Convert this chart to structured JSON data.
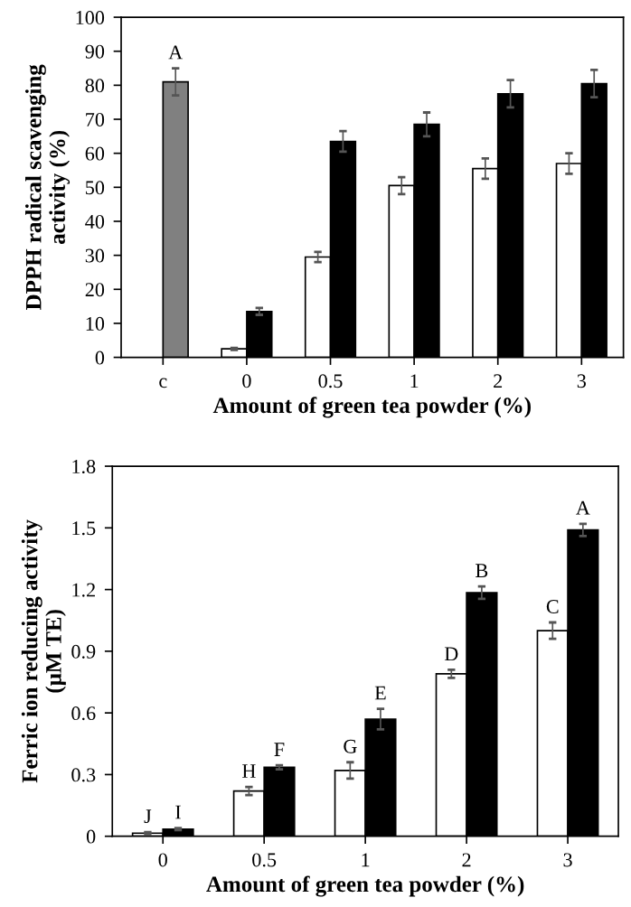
{
  "chart_data": [
    {
      "type": "bar",
      "ylabel": "DPPH radical scavenging\nactivity (%)",
      "xlabel": "Amount of green tea powder (%)",
      "categories": [
        "c",
        "0",
        "0.5",
        "1",
        "2",
        "3"
      ],
      "series": [
        {
          "color": "#ffffff",
          "values": [
            null,
            2.5,
            29.5,
            50.5,
            55.5,
            57
          ],
          "errors": [
            null,
            0.3,
            1.5,
            2.5,
            3,
            3
          ]
        },
        {
          "color": "#000000",
          "colors": [
            "#808080",
            "#000000",
            "#000000",
            "#000000",
            "#000000",
            "#000000"
          ],
          "values": [
            81,
            13.5,
            63.5,
            68.5,
            77.5,
            80.5
          ],
          "errors": [
            4,
            1,
            3,
            3.5,
            4,
            4
          ],
          "value_labels": [
            "A",
            null,
            null,
            null,
            null,
            null
          ]
        }
      ],
      "ylim": [
        0,
        100
      ],
      "yticks": [
        0,
        10,
        20,
        30,
        40,
        50,
        60,
        70,
        80,
        90,
        100
      ],
      "grid": false,
      "legend": false
    },
    {
      "type": "bar",
      "ylabel": "Ferric ion reducing activity\n(μM TE)",
      "xlabel": "Amount of green tea powder (%)",
      "categories": [
        "0",
        "0.5",
        "1",
        "2",
        "3"
      ],
      "series": [
        {
          "color": "#ffffff",
          "values": [
            0.015,
            0.22,
            0.32,
            0.79,
            1.0
          ],
          "errors": [
            0.005,
            0.02,
            0.04,
            0.02,
            0.04
          ],
          "value_labels": [
            "J",
            "H",
            "G",
            "D",
            "C"
          ]
        },
        {
          "color": "#000000",
          "values": [
            0.035,
            0.335,
            0.57,
            1.185,
            1.49
          ],
          "errors": [
            0.005,
            0.01,
            0.05,
            0.03,
            0.03
          ],
          "value_labels": [
            "I",
            "F",
            "E",
            "B",
            "A"
          ]
        }
      ],
      "ylim": [
        0,
        1.8
      ],
      "yticks": [
        0,
        0.3,
        0.6,
        0.9,
        1.2,
        1.5,
        1.8
      ],
      "grid": false,
      "legend": false
    }
  ]
}
